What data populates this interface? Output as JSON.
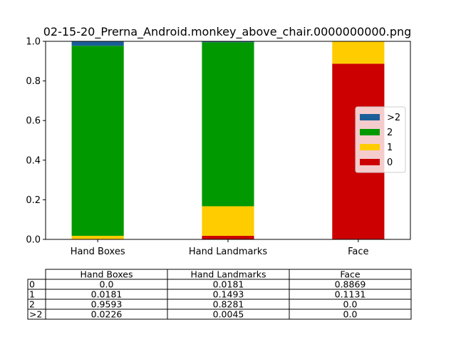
{
  "chart_data": {
    "type": "bar",
    "stacked": true,
    "title": "02-15-20_Prerna_Android.monkey_above_chair.0000000000.png",
    "categories": [
      "Hand Boxes",
      "Hand Landmarks",
      "Face"
    ],
    "ylim": [
      0,
      1.0
    ],
    "yticks": [
      "0.0",
      "0.2",
      "0.4",
      "0.6",
      "0.8",
      "1.0"
    ],
    "grid": false,
    "legend_position": "right",
    "series": [
      {
        "name": "0",
        "color": "#cc0000",
        "values": [
          0.0,
          0.0181,
          0.8869
        ]
      },
      {
        "name": "1",
        "color": "#ffcc00",
        "values": [
          0.0181,
          0.1493,
          0.1131
        ]
      },
      {
        "name": "2",
        "color": "#009900",
        "values": [
          0.9593,
          0.8281,
          0.0
        ]
      },
      {
        "name": ">2",
        "color": "#1a5e99",
        "values": [
          0.0226,
          0.0045,
          0.0
        ]
      }
    ],
    "table": {
      "col_labels": [
        "Hand Boxes",
        "Hand Landmarks",
        "Face"
      ],
      "rows": [
        {
          "label": "0",
          "cells": [
            "0.0",
            "0.0181",
            "0.8869"
          ]
        },
        {
          "label": "1",
          "cells": [
            "0.0181",
            "0.1493",
            "0.1131"
          ]
        },
        {
          "label": "2",
          "cells": [
            "0.9593",
            "0.8281",
            "0.0"
          ]
        },
        {
          "label": ">2",
          "cells": [
            "0.0226",
            "0.0045",
            "0.0"
          ]
        }
      ]
    }
  }
}
